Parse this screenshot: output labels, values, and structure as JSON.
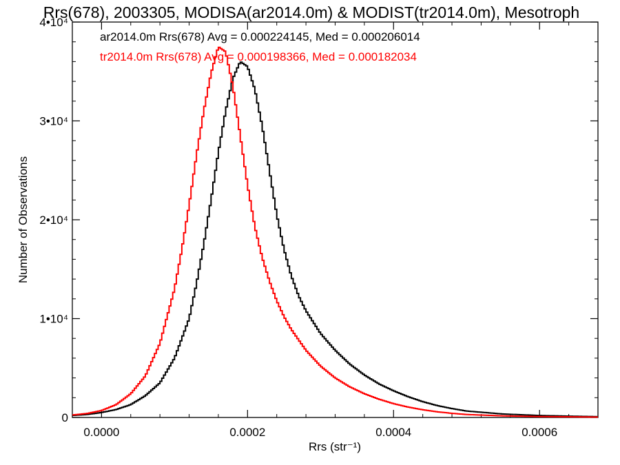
{
  "chart_data": {
    "type": "line",
    "title": "Rrs(678), 2003305, MODISA(ar2014.0m) & MODIST(tr2014.0m), Mesotroph",
    "xlabel": "Rrs (str⁻¹)",
    "ylabel": "Number of Observations",
    "xlim": [
      -4e-05,
      0.00068
    ],
    "ylim": [
      0,
      40000
    ],
    "x_ticks": [
      0.0,
      0.0002,
      0.0004,
      0.0006
    ],
    "x_tick_labels": [
      "0.0000",
      "0.0002",
      "0.0004",
      "0.0006"
    ],
    "y_ticks": [
      0,
      10000,
      20000,
      30000,
      40000
    ],
    "y_tick_labels": [
      "0",
      "1•10⁴",
      "2•10⁴",
      "3•10⁴",
      "4•10⁴"
    ],
    "grid": false,
    "legend_placement": "top-left",
    "series": [
      {
        "name": "ar2014.0m Rrs(678) Avg = 0.000224145, Med = 0.000206014",
        "color": "#000000",
        "x": [
          -4e-05,
          -2e-05,
          0.0,
          2e-05,
          4e-05,
          6e-05,
          8e-05,
          0.0001,
          0.00012,
          0.00013,
          0.00014,
          0.00015,
          0.00016,
          0.00017,
          0.00018,
          0.00019,
          0.0002,
          0.00021,
          0.00022,
          0.00023,
          0.00024,
          0.00025,
          0.00026,
          0.00027,
          0.00028,
          0.0003,
          0.00032,
          0.00034,
          0.00036,
          0.00038,
          0.0004,
          0.00042,
          0.00044,
          0.00046,
          0.00048,
          0.0005,
          0.00055,
          0.0006,
          0.00065,
          0.00068
        ],
        "values": [
          200,
          300,
          500,
          800,
          1300,
          2200,
          3500,
          6000,
          10000,
          13500,
          17500,
          22000,
          26800,
          31000,
          34300,
          36000,
          35500,
          33200,
          29500,
          25000,
          20500,
          17000,
          14300,
          12300,
          10800,
          8500,
          6800,
          5400,
          4300,
          3400,
          2700,
          2100,
          1600,
          1200,
          900,
          650,
          350,
          200,
          120,
          80
        ]
      },
      {
        "name": "tr2014.0m Rrs(678) Avg = 0.000198366, Med = 0.000182034",
        "color": "#ff0000",
        "x": [
          -4e-05,
          -2e-05,
          0.0,
          2e-05,
          4e-05,
          6e-05,
          8e-05,
          0.0001,
          0.00011,
          0.00012,
          0.00013,
          0.00014,
          0.00015,
          0.00016,
          0.00017,
          0.00018,
          0.00019,
          0.0002,
          0.00021,
          0.00022,
          0.00023,
          0.00024,
          0.00025,
          0.00026,
          0.00028,
          0.0003,
          0.00032,
          0.00034,
          0.00036,
          0.00038,
          0.0004,
          0.00042,
          0.00044,
          0.00046,
          0.00048,
          0.0005,
          0.00055,
          0.0006,
          0.00065,
          0.00068
        ],
        "values": [
          250,
          400,
          700,
          1300,
          2400,
          4200,
          7500,
          13000,
          17000,
          21500,
          26500,
          31000,
          34800,
          37500,
          37000,
          33500,
          28500,
          23500,
          19300,
          16200,
          13800,
          11800,
          10200,
          8900,
          6800,
          5200,
          4000,
          3100,
          2400,
          1850,
          1400,
          1050,
          780,
          570,
          420,
          300,
          160,
          90,
          60,
          40
        ]
      }
    ]
  }
}
